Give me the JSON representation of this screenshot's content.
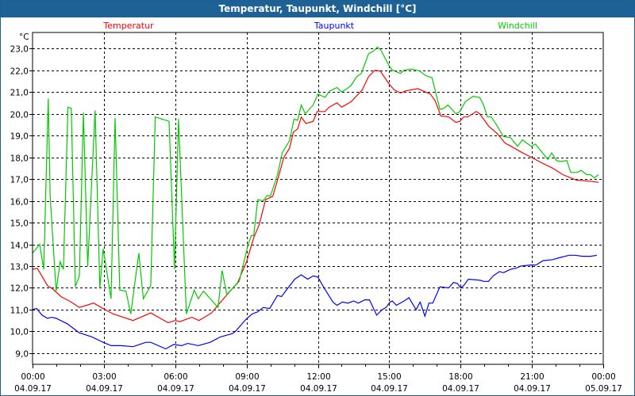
{
  "window": {
    "title": "Temperatur, Taupunkt, Windchill [°C]"
  },
  "chart_data": {
    "type": "line",
    "title": "Temperatur, Taupunkt, Windchill [°C]",
    "ylabel": "°C",
    "xlabel": "",
    "xlim_hours": [
      0,
      24
    ],
    "ylim": [
      8.49,
      23.73
    ],
    "grid": true,
    "legend_placement": "top",
    "y_ticks": [
      9,
      10,
      11,
      12,
      13,
      14,
      15,
      16,
      17,
      18,
      19,
      20,
      21,
      22,
      23
    ],
    "y_tick_labels": [
      "9,0",
      "10,0",
      "11,0",
      "12,0",
      "13,0",
      "14,0",
      "15,0",
      "16,0",
      "17,0",
      "18,0",
      "19,0",
      "20,0",
      "21,0",
      "22,0",
      "23,0"
    ],
    "x_ticks_hours": [
      0,
      3,
      6,
      9,
      12,
      15,
      18,
      21,
      24
    ],
    "x_tick_labels": [
      {
        "time": "00:00",
        "date": "04.09.17"
      },
      {
        "time": "03:00",
        "date": "04.09.17"
      },
      {
        "time": "06:00",
        "date": "04.09.17"
      },
      {
        "time": "09:00",
        "date": "04.09.17"
      },
      {
        "time": "12:00",
        "date": "04.09.17"
      },
      {
        "time": "15:00",
        "date": "04.09.17"
      },
      {
        "time": "18:00",
        "date": "04.09.17"
      },
      {
        "time": "21:00",
        "date": "04.09.17"
      },
      {
        "time": "00:00",
        "date": "05.09.17"
      }
    ],
    "series": [
      {
        "name": "Temperatur",
        "color": "#ff0000",
        "points": [
          [
            0,
            12.85
          ],
          [
            0.2,
            12.9
          ],
          [
            0.63,
            12.1
          ],
          [
            0.85,
            11.95
          ],
          [
            1.2,
            11.6
          ],
          [
            1.63,
            11.35
          ],
          [
            1.97,
            11.1
          ],
          [
            2.57,
            11.3
          ],
          [
            2.97,
            11.05
          ],
          [
            3.4,
            10.8
          ],
          [
            4.23,
            10.5
          ],
          [
            4.97,
            10.85
          ],
          [
            5.7,
            10.4
          ],
          [
            6.0,
            10.5
          ],
          [
            6.2,
            10.45
          ],
          [
            6.7,
            10.65
          ],
          [
            7.0,
            10.5
          ],
          [
            7.53,
            10.85
          ],
          [
            7.87,
            11.3
          ],
          [
            8.63,
            12.25
          ],
          [
            9.0,
            13.2
          ],
          [
            9.3,
            14.3
          ],
          [
            9.53,
            14.9
          ],
          [
            9.8,
            16.05
          ],
          [
            10.1,
            16.2
          ],
          [
            10.3,
            16.95
          ],
          [
            10.57,
            18.0
          ],
          [
            10.8,
            18.4
          ],
          [
            10.97,
            19.15
          ],
          [
            11.15,
            19.3
          ],
          [
            11.3,
            19.85
          ],
          [
            11.5,
            19.55
          ],
          [
            11.8,
            19.65
          ],
          [
            11.97,
            20.1
          ],
          [
            12.3,
            20.1
          ],
          [
            12.47,
            20.3
          ],
          [
            12.8,
            20.5
          ],
          [
            13.0,
            20.3
          ],
          [
            13.4,
            20.55
          ],
          [
            13.7,
            20.9
          ],
          [
            13.87,
            21.1
          ],
          [
            14.13,
            21.7
          ],
          [
            14.4,
            22.0
          ],
          [
            14.63,
            21.95
          ],
          [
            14.97,
            21.4
          ],
          [
            15.2,
            21.1
          ],
          [
            15.47,
            20.95
          ],
          [
            15.7,
            21.05
          ],
          [
            16.2,
            21.15
          ],
          [
            16.73,
            20.9
          ],
          [
            16.93,
            20.6
          ],
          [
            17.17,
            19.9
          ],
          [
            17.5,
            19.85
          ],
          [
            17.8,
            19.6
          ],
          [
            17.97,
            19.65
          ],
          [
            18.13,
            19.85
          ],
          [
            18.3,
            19.85
          ],
          [
            18.66,
            20.1
          ],
          [
            18.8,
            20.0
          ],
          [
            19.2,
            19.4
          ],
          [
            19.53,
            19.1
          ],
          [
            19.87,
            18.65
          ],
          [
            20.13,
            18.5
          ],
          [
            20.53,
            18.25
          ],
          [
            20.97,
            18.0
          ],
          [
            21.4,
            17.75
          ],
          [
            21.87,
            17.5
          ],
          [
            22.3,
            17.2
          ],
          [
            22.87,
            16.95
          ],
          [
            23.43,
            16.9
          ],
          [
            23.8,
            16.85
          ]
        ]
      },
      {
        "name": "Taupunkt",
        "color": "#0000ff",
        "points": [
          [
            0,
            11.0
          ],
          [
            0.17,
            11.05
          ],
          [
            0.4,
            10.75
          ],
          [
            0.63,
            10.6
          ],
          [
            0.8,
            10.65
          ],
          [
            1.0,
            10.6
          ],
          [
            1.47,
            10.35
          ],
          [
            1.95,
            9.95
          ],
          [
            2.5,
            9.75
          ],
          [
            2.97,
            9.5
          ],
          [
            3.3,
            9.35
          ],
          [
            3.7,
            9.35
          ],
          [
            4.23,
            9.3
          ],
          [
            4.77,
            9.5
          ],
          [
            4.97,
            9.5
          ],
          [
            5.6,
            9.2
          ],
          [
            5.93,
            9.4
          ],
          [
            6.27,
            9.35
          ],
          [
            6.53,
            9.45
          ],
          [
            6.97,
            9.35
          ],
          [
            7.47,
            9.5
          ],
          [
            7.9,
            9.75
          ],
          [
            8.4,
            9.9
          ],
          [
            8.53,
            10.0
          ],
          [
            8.97,
            10.55
          ],
          [
            9.23,
            10.8
          ],
          [
            9.47,
            10.9
          ],
          [
            9.7,
            11.1
          ],
          [
            9.97,
            11.05
          ],
          [
            10.3,
            11.65
          ],
          [
            10.47,
            11.6
          ],
          [
            10.73,
            11.98
          ],
          [
            11.03,
            12.4
          ],
          [
            11.3,
            12.6
          ],
          [
            11.57,
            12.4
          ],
          [
            11.8,
            12.55
          ],
          [
            12.0,
            12.5
          ],
          [
            12.23,
            12.05
          ],
          [
            12.63,
            11.35
          ],
          [
            12.8,
            11.2
          ],
          [
            13.03,
            11.35
          ],
          [
            13.27,
            11.3
          ],
          [
            13.5,
            11.4
          ],
          [
            13.7,
            11.3
          ],
          [
            13.97,
            11.45
          ],
          [
            14.17,
            11.45
          ],
          [
            14.47,
            10.75
          ],
          [
            14.7,
            11.0
          ],
          [
            14.87,
            11.1
          ],
          [
            15.03,
            11.35
          ],
          [
            15.13,
            11.4
          ],
          [
            15.3,
            11.2
          ],
          [
            15.63,
            11.4
          ],
          [
            15.83,
            11.55
          ],
          [
            16.13,
            11.0
          ],
          [
            16.3,
            11.35
          ],
          [
            16.5,
            10.7
          ],
          [
            16.67,
            11.3
          ],
          [
            16.83,
            11.3
          ],
          [
            17.13,
            12.05
          ],
          [
            17.5,
            12.0
          ],
          [
            17.7,
            12.25
          ],
          [
            17.87,
            12.2
          ],
          [
            18.0,
            12.0
          ],
          [
            18.13,
            12.1
          ],
          [
            18.33,
            12.4
          ],
          [
            18.83,
            12.35
          ],
          [
            18.97,
            12.3
          ],
          [
            19.17,
            12.3
          ],
          [
            19.37,
            12.55
          ],
          [
            19.63,
            12.75
          ],
          [
            19.8,
            12.7
          ],
          [
            20.1,
            12.85
          ],
          [
            20.37,
            12.92
          ],
          [
            20.53,
            13.0
          ],
          [
            20.93,
            13.05
          ],
          [
            21.17,
            13.05
          ],
          [
            21.47,
            13.25
          ],
          [
            21.87,
            13.3
          ],
          [
            22.2,
            13.4
          ],
          [
            22.57,
            13.5
          ],
          [
            22.83,
            13.5
          ],
          [
            23.13,
            13.45
          ],
          [
            23.47,
            13.45
          ],
          [
            23.73,
            13.5
          ]
        ]
      },
      {
        "name": "Windchill",
        "color": "#00cc00",
        "points": [
          [
            0,
            13.6
          ],
          [
            0.3,
            14.0
          ],
          [
            0.47,
            12.85
          ],
          [
            0.66,
            20.7
          ],
          [
            0.74,
            16.2
          ],
          [
            0.99,
            11.85
          ],
          [
            1.16,
            13.2
          ],
          [
            1.3,
            12.85
          ],
          [
            1.49,
            20.3
          ],
          [
            1.63,
            20.25
          ],
          [
            1.8,
            12.05
          ],
          [
            1.97,
            12.55
          ],
          [
            2.14,
            20.05
          ],
          [
            2.32,
            13.0
          ],
          [
            2.63,
            20.15
          ],
          [
            2.83,
            12.0
          ],
          [
            2.97,
            13.8
          ],
          [
            3.3,
            11.5
          ],
          [
            3.47,
            19.8
          ],
          [
            3.67,
            11.9
          ],
          [
            3.93,
            11.85
          ],
          [
            4.13,
            10.8
          ],
          [
            4.47,
            13.6
          ],
          [
            4.66,
            11.5
          ],
          [
            4.97,
            12.1
          ],
          [
            5.16,
            19.85
          ],
          [
            5.74,
            19.65
          ],
          [
            5.97,
            12.85
          ],
          [
            6.14,
            19.75
          ],
          [
            6.47,
            10.8
          ],
          [
            6.8,
            11.9
          ],
          [
            6.97,
            11.5
          ],
          [
            7.19,
            11.85
          ],
          [
            7.8,
            11.1
          ],
          [
            7.97,
            12.8
          ],
          [
            8.17,
            11.7
          ],
          [
            8.69,
            12.3
          ],
          [
            9.07,
            14.0
          ],
          [
            9.2,
            14.4
          ],
          [
            9.3,
            14.4
          ],
          [
            9.47,
            16.05
          ],
          [
            9.7,
            16.0
          ],
          [
            9.87,
            16.25
          ],
          [
            10.0,
            16.2
          ],
          [
            10.3,
            17.2
          ],
          [
            10.5,
            18.2
          ],
          [
            10.8,
            18.75
          ],
          [
            11.0,
            19.75
          ],
          [
            11.15,
            19.7
          ],
          [
            11.3,
            20.4
          ],
          [
            11.47,
            20.0
          ],
          [
            11.8,
            20.4
          ],
          [
            12.0,
            20.9
          ],
          [
            12.3,
            20.75
          ],
          [
            12.5,
            21.05
          ],
          [
            12.8,
            21.2
          ],
          [
            13.0,
            21.0
          ],
          [
            13.23,
            21.15
          ],
          [
            13.4,
            21.3
          ],
          [
            13.63,
            21.7
          ],
          [
            13.83,
            21.85
          ],
          [
            14.13,
            22.75
          ],
          [
            14.3,
            22.85
          ],
          [
            14.5,
            23.05
          ],
          [
            14.63,
            22.95
          ],
          [
            14.97,
            22.25
          ],
          [
            15.13,
            22.0
          ],
          [
            15.47,
            21.85
          ],
          [
            15.63,
            22.0
          ],
          [
            15.97,
            22.05
          ],
          [
            16.3,
            21.95
          ],
          [
            16.53,
            21.75
          ],
          [
            16.8,
            21.65
          ],
          [
            17.13,
            20.2
          ],
          [
            17.3,
            20.25
          ],
          [
            17.47,
            20.4
          ],
          [
            17.8,
            20.0
          ],
          [
            17.97,
            20.1
          ],
          [
            18.2,
            20.55
          ],
          [
            18.53,
            20.8
          ],
          [
            18.8,
            20.75
          ],
          [
            18.97,
            20.4
          ],
          [
            19.13,
            19.85
          ],
          [
            19.3,
            19.85
          ],
          [
            19.53,
            19.45
          ],
          [
            19.8,
            18.95
          ],
          [
            20.1,
            18.9
          ],
          [
            20.4,
            18.5
          ],
          [
            20.6,
            18.8
          ],
          [
            20.97,
            18.5
          ],
          [
            21.15,
            18.6
          ],
          [
            21.37,
            18.3
          ],
          [
            21.67,
            17.9
          ],
          [
            21.83,
            18.2
          ],
          [
            22.03,
            17.85
          ],
          [
            22.2,
            17.8
          ],
          [
            22.47,
            17.85
          ],
          [
            22.63,
            17.3
          ],
          [
            22.9,
            17.3
          ],
          [
            23.07,
            17.4
          ],
          [
            23.3,
            17.2
          ],
          [
            23.47,
            17.2
          ],
          [
            23.63,
            17.05
          ],
          [
            23.8,
            17.2
          ]
        ]
      }
    ]
  }
}
